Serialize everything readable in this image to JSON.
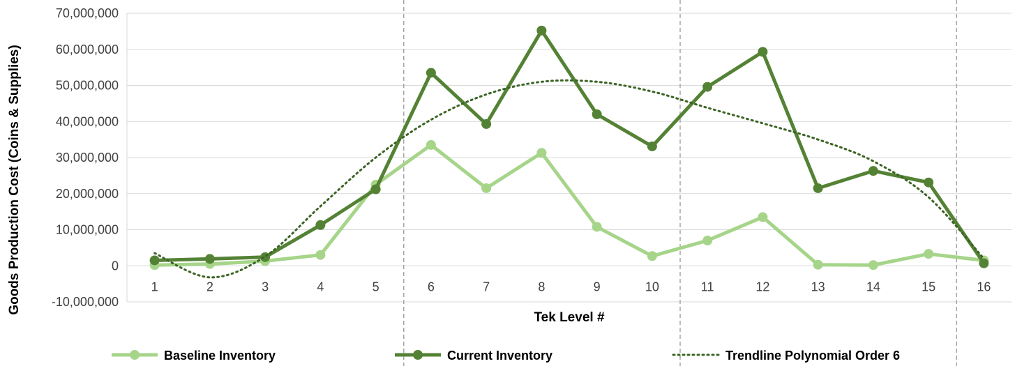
{
  "chart_data": {
    "type": "line",
    "title": "",
    "xlabel": "Tek Level #",
    "ylabel": "Goods Production Cost (Coins & Supplies)",
    "categories": [
      "1",
      "2",
      "3",
      "4",
      "5",
      "6",
      "7",
      "8",
      "9",
      "10",
      "11",
      "12",
      "13",
      "14",
      "15",
      "16"
    ],
    "y_ticks": [
      "-10,000,000",
      "0",
      "10,000,000",
      "20,000,000",
      "30,000,000",
      "40,000,000",
      "50,000,000",
      "60,000,000",
      "70,000,000"
    ],
    "y_tick_values": [
      -10000000,
      0,
      10000000,
      20000000,
      30000000,
      40000000,
      50000000,
      60000000,
      70000000
    ],
    "ylim": [
      -10000000,
      70000000
    ],
    "grid": true,
    "legend_position": "bottom",
    "series": [
      {
        "name": "Baseline Inventory",
        "color": "#a6d58a",
        "values": [
          200000,
          500000,
          1300000,
          3000000,
          22500000,
          33500000,
          21500000,
          31300000,
          10800000,
          2700000,
          7000000,
          13500000,
          300000,
          200000,
          3300000,
          1500000
        ]
      },
      {
        "name": "Current Inventory",
        "color": "#548235",
        "values": [
          1500000,
          1900000,
          2400000,
          11300000,
          21200000,
          53500000,
          39300000,
          65200000,
          42000000,
          33100000,
          49600000,
          59300000,
          21500000,
          26300000,
          23100000,
          700000
        ]
      },
      {
        "name": "Trendline Polynomial Order 6",
        "color": "#3b6424",
        "style": "dotted",
        "values": [
          3500000,
          -3200000,
          2600000,
          16500000,
          30000000,
          40500000,
          47500000,
          51000000,
          51000000,
          48300000,
          43800000,
          39500000,
          35000000,
          29000000,
          19000000,
          2000000
        ]
      }
    ],
    "vertical_reference_lines_after_categories": [
      "5",
      "10",
      "15"
    ]
  }
}
